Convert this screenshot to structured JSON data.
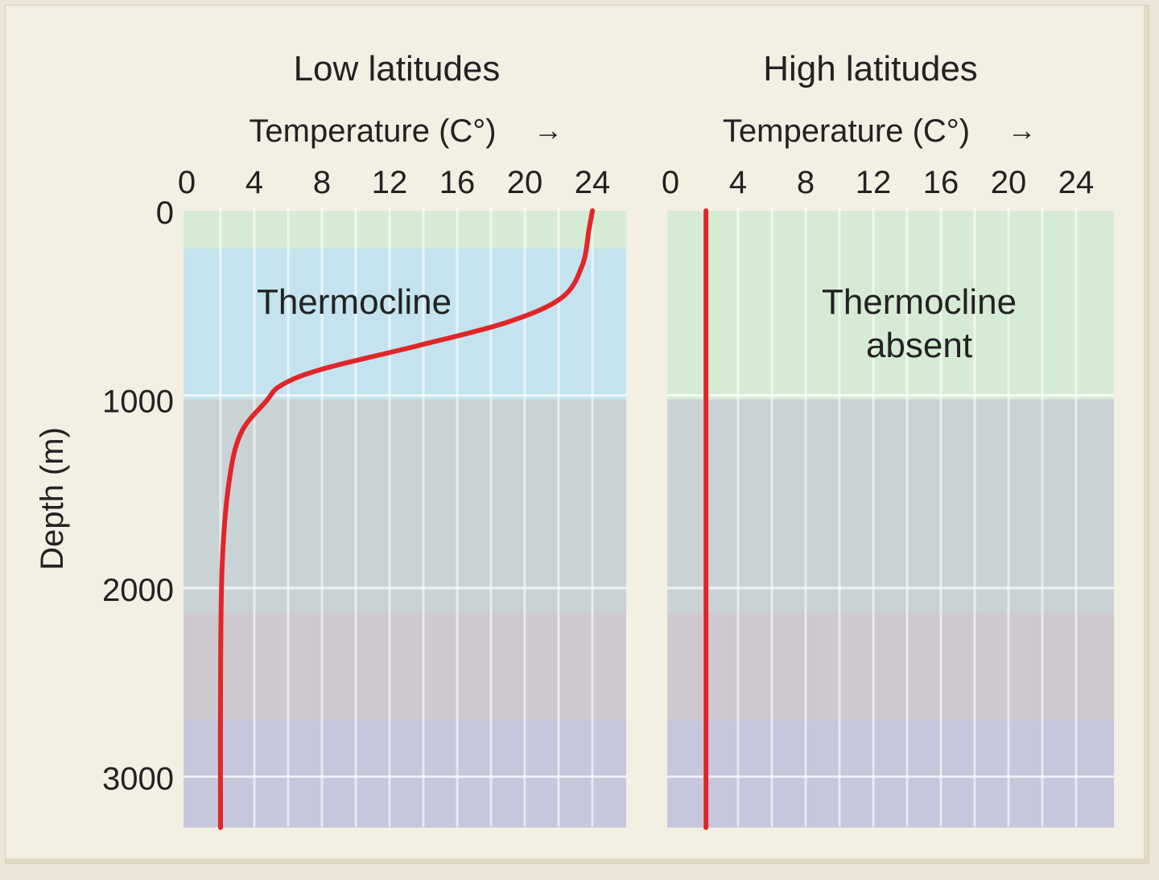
{
  "chart_data": [
    {
      "type": "line",
      "title": "Low latitudes",
      "xlabel": "Temperature (C°)",
      "ylabel": "Depth (m)",
      "xticks": [
        "0",
        "4",
        "8",
        "12",
        "16",
        "20",
        "24"
      ],
      "yticks": [
        "0",
        "1000",
        "2000",
        "3000"
      ],
      "xlim": [
        0,
        26
      ],
      "ylim": [
        0,
        3270
      ],
      "annotation": "Thermocline",
      "bands": [
        {
          "from": 0,
          "to": 200,
          "color": "#d6ebd3"
        },
        {
          "from": 200,
          "to": 1000,
          "color": "#c4e3ee"
        },
        {
          "from": 1000,
          "to": 2130,
          "color": "#c9d3d6"
        },
        {
          "from": 2130,
          "to": 2700,
          "color": "#cfc8cf"
        },
        {
          "from": 2700,
          "to": 3270,
          "color": "#c6c6dc"
        }
      ],
      "series": [
        {
          "name": "Temperature profile",
          "color": "#e0262a",
          "points": [
            [
              24,
              0
            ],
            [
              23.8,
              100
            ],
            [
              23.4,
              290
            ],
            [
              22.2,
              460
            ],
            [
              19,
              590
            ],
            [
              13.7,
              715
            ],
            [
              8,
              840
            ],
            [
              5.6,
              925
            ],
            [
              4.7,
              1010
            ],
            [
              3.2,
              1180
            ],
            [
              2.5,
              1440
            ],
            [
              2.1,
              1870
            ],
            [
              2,
              2500
            ],
            [
              2,
              3270
            ]
          ]
        }
      ]
    },
    {
      "type": "line",
      "title": "High latitudes",
      "xlabel": "Temperature (C°)",
      "xticks": [
        "0",
        "4",
        "8",
        "12",
        "16",
        "20",
        "24"
      ],
      "xlim": [
        0,
        26
      ],
      "ylim": [
        0,
        3270
      ],
      "annotation": [
        "Thermocline",
        "absent"
      ],
      "bands": [
        {
          "from": 0,
          "to": 1000,
          "color": "#d6ebd3"
        },
        {
          "from": 1000,
          "to": 2130,
          "color": "#c9d3d6"
        },
        {
          "from": 2130,
          "to": 2700,
          "color": "#cfc8cf"
        },
        {
          "from": 2700,
          "to": 3270,
          "color": "#c6c6dc"
        }
      ],
      "series": [
        {
          "name": "Temperature profile",
          "color": "#e0262a",
          "points": [
            [
              2.1,
              0
            ],
            [
              2.1,
              3270
            ]
          ]
        }
      ]
    }
  ]
}
